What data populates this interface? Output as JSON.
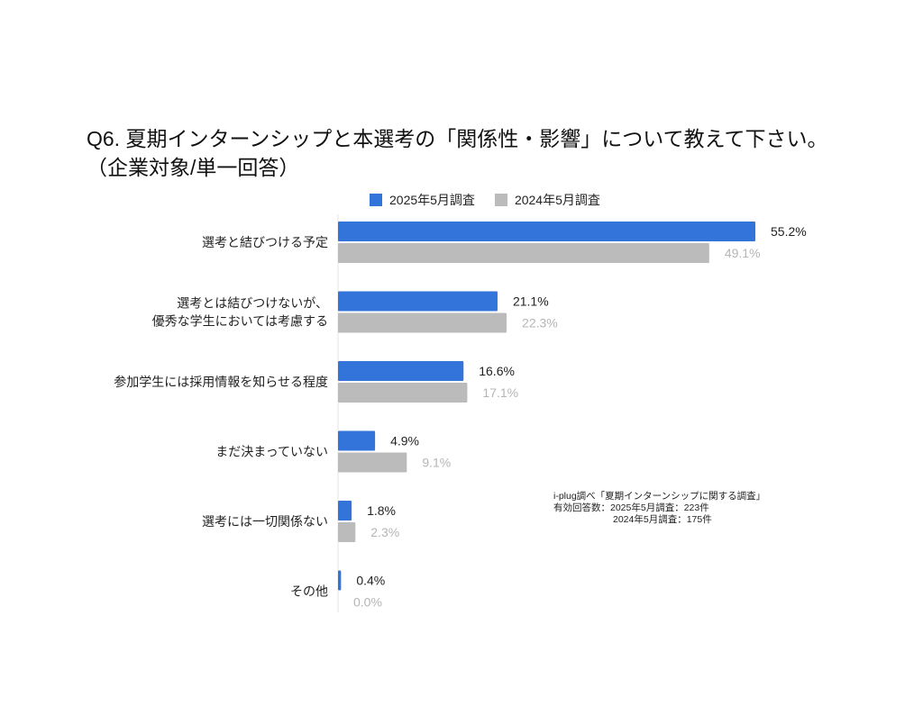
{
  "chart_data": {
    "type": "bar",
    "orientation": "horizontal",
    "title": "Q6. 夏期インターンシップと本選考の「関係性・影響」について教えて下さい。",
    "subtitle": "（企業対象/単一回答）",
    "categories": [
      [
        "選考と結びつける予定"
      ],
      [
        "選考とは結びつけないが、",
        "優秀な学生においては考慮する"
      ],
      [
        "参加学生には採用情報を知らせる程度"
      ],
      [
        "まだ決まっていない"
      ],
      [
        "選考には一切関係ない"
      ],
      [
        "その他"
      ]
    ],
    "series": [
      {
        "name": "2025年5月調査",
        "color": "#3274d9",
        "label_color": "#222222",
        "values": [
          55.2,
          21.1,
          16.6,
          4.9,
          1.8,
          0.4
        ],
        "labels": [
          "55.2%",
          "21.1%",
          "16.6%",
          "4.9%",
          "1.8%",
          "0.4%"
        ]
      },
      {
        "name": "2024年5月調査",
        "color": "#bbbbbb",
        "label_color": "#b5b5b5",
        "values": [
          49.1,
          22.3,
          17.1,
          9.1,
          2.3,
          0.0
        ],
        "labels": [
          "49.1%",
          "22.3%",
          "17.1%",
          "9.1%",
          "2.3%",
          "0.0%"
        ]
      }
    ],
    "unit": "%",
    "xlim": [
      0,
      60
    ],
    "grid": false,
    "legend_position": "top"
  },
  "note": {
    "line1": "i-plug調べ「夏期インターンシップに関する調査」",
    "line2": "有効回答数：2025年5月調査：223件",
    "line3": "2024年5月調査：175件"
  }
}
